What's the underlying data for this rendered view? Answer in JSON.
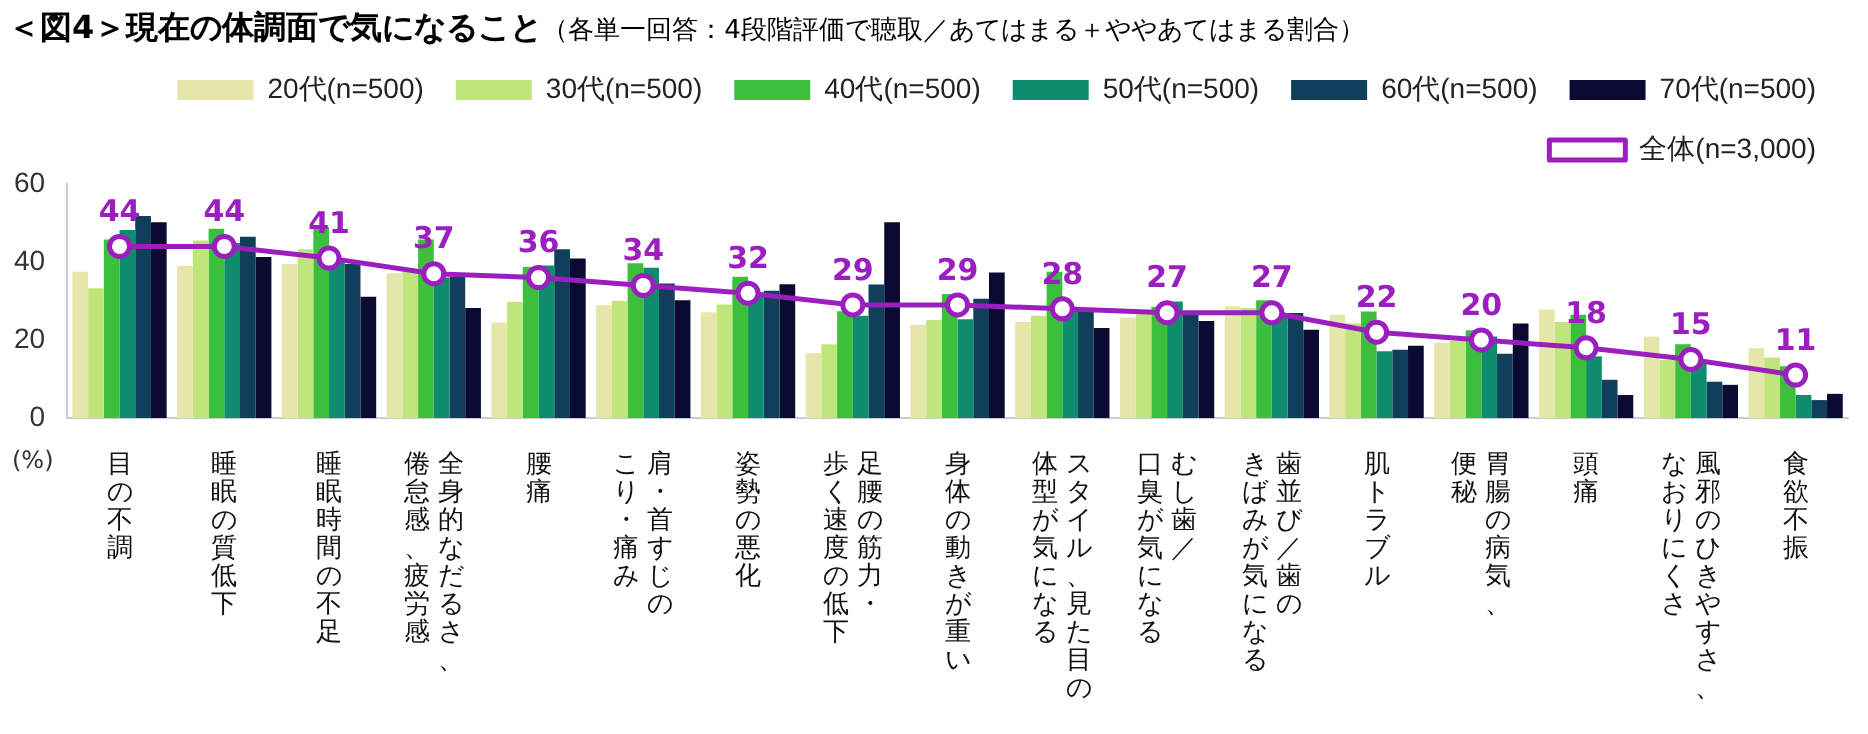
{
  "chart_data": {
    "type": "bar",
    "title": "＜図4＞現在の体調面で気になること",
    "subtitle": "（各単一回答：4段階評価で聴取／あてはまる＋ややあてはまる割合）",
    "ylabel": "(%)",
    "categories": [
      "目の不調",
      "睡眠の質低下",
      "睡眠時間の不足",
      "全身的なだるさ、倦怠感、疲労感",
      "腰痛",
      "肩・首すじのこり・痛み",
      "姿勢の悪化",
      "足腰の筋力・歩く速度の低下",
      "身体の動きが重い",
      "スタイル、見た目の体型が気になる",
      "むし歯／口臭が気になる",
      "歯並び／歯のきばみが気になる",
      "肌トラブル",
      "胃腸の病気、便秘",
      "頭痛",
      "風邪のひきやすさ、なおりにくさ",
      "食欲不振"
    ],
    "ylim": [
      0,
      60
    ],
    "yticks": [
      0,
      20,
      40,
      60
    ],
    "grid": false,
    "legend": "top right",
    "marker": "circle",
    "line_style": "solid",
    "series": [
      {
        "name": "20代(n=500)",
        "color": "#e6e6aa",
        "values": [
          37.5,
          39,
          39.5,
          37.1,
          24.5,
          28.9,
          27.1,
          16.6,
          23.9,
          24.6,
          25.8,
          28.6,
          26.5,
          19.3,
          27.8,
          20.9,
          17.9
        ]
      },
      {
        "name": "30代(n=500)",
        "color": "#bfe67a",
        "values": [
          33.3,
          45.5,
          43.3,
          37.5,
          29.8,
          30,
          29.1,
          18.9,
          25.1,
          26.2,
          26.9,
          28.2,
          24.2,
          19.8,
          24.6,
          14.9,
          15.5
        ]
      },
      {
        "name": "40代(n=500)",
        "color": "#3cbf3c",
        "values": [
          45.8,
          48.5,
          49,
          45.8,
          38.7,
          39.7,
          36.2,
          27.4,
          31.8,
          37.5,
          28.5,
          30.2,
          27.3,
          22.5,
          26.5,
          18.9,
          13.3
        ]
      },
      {
        "name": "50代(n=500)",
        "color": "#0f8c6e",
        "values": [
          48.2,
          44.9,
          40,
          36,
          39.1,
          38.5,
          32.2,
          26.2,
          25.3,
          27.5,
          29.9,
          26.5,
          17.1,
          20.9,
          15.8,
          14.2,
          5.9
        ]
      },
      {
        "name": "60代(n=500)",
        "color": "#0f3f5a",
        "values": [
          51.8,
          46.5,
          39.5,
          36.2,
          43.3,
          34.5,
          32.6,
          34.2,
          30.6,
          27.5,
          26.6,
          26.9,
          17.5,
          16.5,
          9.8,
          9.3,
          4.6
        ]
      },
      {
        "name": "70代(n=500)",
        "color": "#0a0a32",
        "values": [
          50.2,
          41.3,
          31.1,
          28.2,
          40.9,
          30.2,
          34.3,
          50.2,
          37.3,
          23.1,
          24.9,
          22.6,
          18.5,
          24.2,
          5.9,
          8.5,
          6.2
        ]
      },
      {
        "name": "全体(n=3,000)",
        "type": "line",
        "color": "#9b1fbf",
        "values": [
          44,
          44,
          41,
          37,
          36,
          34,
          32,
          29,
          29,
          28,
          27,
          27,
          22,
          20,
          18,
          15,
          11
        ],
        "value_labels": [
          "44",
          "44",
          "41",
          "37",
          "36",
          "34",
          "32",
          "29",
          "29",
          "28",
          "27",
          "27",
          "22",
          "20",
          "18",
          "15",
          "11"
        ]
      }
    ]
  }
}
